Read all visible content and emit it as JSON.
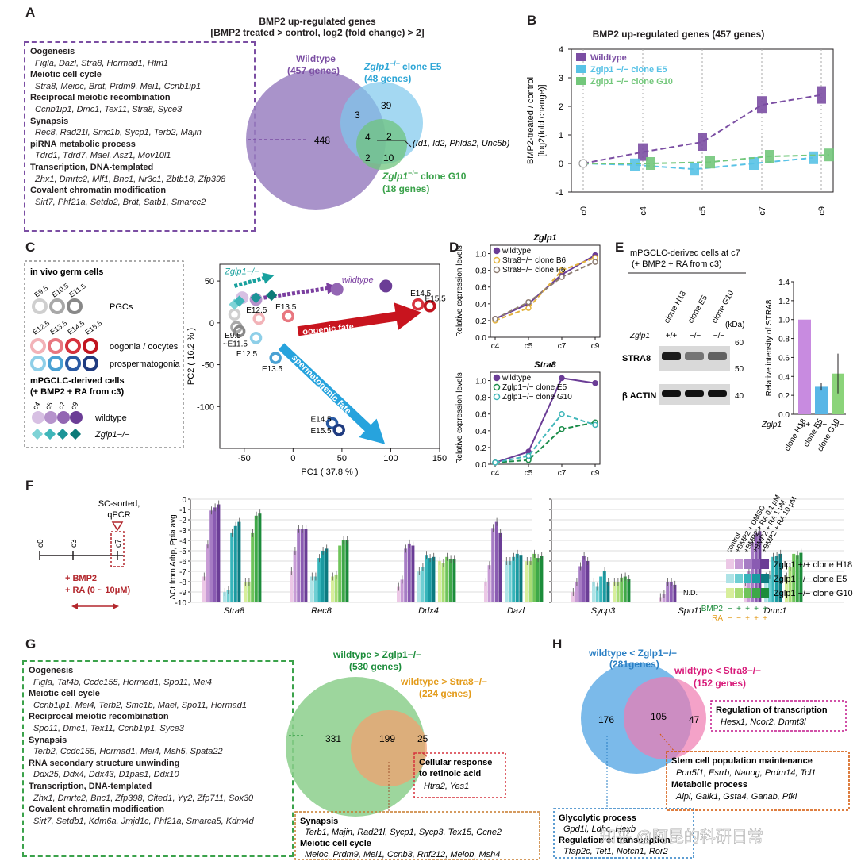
{
  "panelA": {
    "label": "A",
    "title_line1": "BMP2 up-regulated genes",
    "title_line2": "[BMP2 treated > control, log2 (fold change) > 2]",
    "go_terms": [
      {
        "category": "Oogenesis",
        "genes": "Figla, Dazl, Stra8, Hormad1, Hfm1"
      },
      {
        "category": "Meiotic cell cycle",
        "genes": "Stra8, Meioc, Brdt, Prdm9, Mei1, Ccnb1ip1"
      },
      {
        "category": "Reciprocal meiotic recombination",
        "genes": "Ccnb1ip1, Dmc1, Tex11, Stra8, Syce3"
      },
      {
        "category": "Synapsis",
        "genes": "Rec8, Rad21l, Smc1b, Sycp1, Terb2, Majin"
      },
      {
        "category": "piRNA metabolic process",
        "genes": "Tdrd1, Tdrd7, Mael, Asz1, Mov10l1"
      },
      {
        "category": "Transcription, DNA-templated",
        "genes": "Zhx1, Dmrtc2, Mlf1, Bnc1, Nr3c1, Zbtb18, Zfp398"
      },
      {
        "category": "Covalent chromatin modification",
        "genes": "Sirt7, Phf21a, Setdb2, Brdt, Satb1, Smarcc2"
      }
    ],
    "venn": {
      "wt_label": "Wildtype",
      "wt_count": "(457 genes)",
      "e5_label": "Zglp1",
      "e5_suffix": "clone E5",
      "e5_count": "(48 genes)",
      "g10_label": "Zglp1",
      "g10_suffix": "clone G10",
      "g10_count": "(18 genes)",
      "ko_sup": "−/−",
      "n_wt_only": "448",
      "n_wt_e5": "3",
      "n_e5_only": "39",
      "n_all": "4",
      "n_e5_g10": "2",
      "n_wt_g10": "2",
      "n_g10_only": "10",
      "note": "(Id1, Id2, Phlda2, Unc5b)"
    }
  },
  "panelB": {
    "label": "B",
    "title": "BMP2 up-regulated genes (457 genes)",
    "ylabel1": "BMP2-treated / control",
    "ylabel2": "[log2(fold change)]",
    "legend": [
      {
        "name": "Wildtype",
        "color": "#7b4ea3"
      },
      {
        "name": "Zglp1 −/− clone E5",
        "color": "#58c2e6"
      },
      {
        "name": "Zglp1 −/− clone G10",
        "color": "#73c77b"
      }
    ]
  },
  "panelC": {
    "label": "C",
    "legend_title1": "in vivo germ cells",
    "stages_pgc": [
      "E9.5",
      "E10.5",
      "E11.5"
    ],
    "label_pgc": "PGCs",
    "stages_oo": [
      "E12.5",
      "E13.5",
      "E14.5",
      "E15.5"
    ],
    "label_oo": "oogonia / oocytes",
    "label_pro": "prospermatogonia",
    "legend_title2": "mPGCLC-derived cells",
    "legend_title3": "(+ BMP2 + RA from c3)",
    "days": [
      "c4",
      "c5",
      "c7",
      "c9"
    ],
    "label_wt": "wildtype",
    "label_ko": "Zglp1−/−",
    "xlabel": "PC1 ( 37.8 % )",
    "ylabel": "PC2 ( 16.2 % )",
    "arrow_oogenic": "oogenic fate",
    "arrow_sperm": "spermatogenic fate",
    "arrow_wt": "wildtype",
    "arrow_ko": "Zglp1−/−"
  },
  "panelD": {
    "label": "D",
    "top_title": "Zglp1",
    "top_legend": [
      "wildtype",
      "Stra8−/− clone B6",
      "Stra8−/− clone F6"
    ],
    "bottom_title": "Stra8",
    "bottom_legend": [
      "wildtype",
      "Zglp1−/− clone E5",
      "Zglp1−/− clone G10"
    ],
    "ylabel": "Relative expression levels"
  },
  "panelE": {
    "label": "E",
    "title1": "mPGCLC-derived cells at c7",
    "title2": "(+ BMP2 + RA from c3)",
    "clones": [
      "clone H18",
      "clone E5",
      "clone G10"
    ],
    "genotype_label": "Zglp1",
    "genotypes": [
      "+/+",
      "−/−",
      "−/−"
    ],
    "kda": "(kDa)",
    "band1": "STRA8",
    "band2": "β ACTIN",
    "mw": [
      "60",
      "50",
      "40"
    ],
    "ylabel": "Relative intensity of STRA8"
  },
  "panelF": {
    "label": "F",
    "sorted_label1": "SC-sorted,",
    "sorted_label2": "qPCR",
    "timeline": [
      "c0",
      "c3",
      "c7"
    ],
    "treatment1": "+ BMP2",
    "treatment2": "+ RA (0 ~ 10μM)",
    "ylabel": "ΔCt from Arbp, Ppia avg",
    "genes": [
      "Stra8",
      "Rec8",
      "Ddx4",
      "Dazl",
      "Sycp3",
      "Spo11",
      "Dmc1"
    ],
    "nd": "N.D.",
    "conditions": [
      "control",
      "+BMP2 + DMSO",
      "+BMP2 + RA 0.1 μM",
      "+BMP2 + RA 1 μM",
      "+BMP2 + RA 10 μM"
    ],
    "groups": [
      "Zglp1 +/+ clone H18",
      "Zglp1 −/− clone E5",
      "Zglp1 −/− clone G10"
    ],
    "bmp2_label": "BMP2",
    "ra_label": "RA",
    "bmp2_signs": [
      "−",
      "+",
      "+",
      "+",
      "+"
    ],
    "ra_signs": [
      "−",
      "−",
      "+",
      "+",
      "+"
    ]
  },
  "panelG": {
    "label": "G",
    "go_terms": [
      {
        "category": "Oogenesis",
        "genes": "Figla, Taf4b, Ccdc155, Hormad1, Spo11, Mei4"
      },
      {
        "category": "Meiotic cell cycle",
        "genes": "Ccnb1ip1, Mei4, Terb2, Smc1b, Mael, Spo11, Hormad1"
      },
      {
        "category": "Reciprocal meiotic recombination",
        "genes": "Spo11, Dmc1, Tex11, Ccnb1ip1, Syce3"
      },
      {
        "category": "Synapsis",
        "genes": "Terb2, Ccdc155, Hormad1, Mei4, Msh5, Spata22"
      },
      {
        "category": "RNA secondary structure unwinding",
        "genes": "Ddx25, Ddx4, Ddx43, D1pas1, Ddx10"
      },
      {
        "category": "Transcription, DNA-templated",
        "genes": "Zhx1, Dmrtc2, Bnc1, Zfp398, Cited1, Yy2, Zfp711, Sox30"
      },
      {
        "category": "Covalent chromatin modification",
        "genes": "Sirt7, Setdb1, Kdm6a, Jmjd1c, Phf21a, Smarca5, Kdm4d"
      }
    ],
    "venn_wt": "wildtype > Zglp1−/−",
    "venn_wt_count": "(530 genes)",
    "venn_s8": "wildtype > Stra8−/−",
    "venn_s8_count": "(224 genes)",
    "n_left": "331",
    "n_mid": "199",
    "n_right": "25",
    "box_ra_title1": "Cellular response",
    "box_ra_title2": "to retinoic acid",
    "box_ra_genes": "Htra2, Yes1",
    "box_syn_cat1": "Synapsis",
    "box_syn_genes1": "Terb1, Majin, Rad21l, Sycp1, Sycp3, Tex15, Ccne2",
    "box_syn_cat2": "Meiotic cell cycle",
    "box_syn_genes2": "Meioc, Prdm9, Mei1, Ccnb3, Rnf212, Meiob, Msh4"
  },
  "panelH": {
    "label": "H",
    "venn_left": "wildtype < Zglp1−/−",
    "venn_left_count": "(281genes)",
    "venn_right": "wildtype < Stra8−/−",
    "venn_right_count": "(152 genes)",
    "n_left": "176",
    "n_mid": "105",
    "n_right": "47",
    "box_reg_title": "Regulation of transcription",
    "box_reg_genes": "Hesx1, Ncor2, Dnmt3l",
    "box_stem_cat1": "Stem cell population maintenance",
    "box_stem_genes1": "Pou5f1, Esrrb, Nanog, Prdm14, Tcl1",
    "box_stem_cat2": "Metabolic process",
    "box_stem_genes2": "Alpl, Galk1, Gsta4, Ganab, Pfkl",
    "box_gly_cat1": "Glycolytic process",
    "box_gly_genes1": "Gpd1l, Ldhc, Hexb",
    "box_gly_cat2": "Regulation of transcription",
    "box_gly_genes2": "Tfap2c, Tet1, Notch1, Ror2",
    "watermark": "知乎 @阿昆的科研日常"
  },
  "chart_data": [
    {
      "type": "line",
      "panel": "B",
      "title": "BMP2 up-regulated genes (457 genes)",
      "categories": [
        "c0",
        "c4",
        "c5",
        "c7",
        "c9"
      ],
      "ylim": [
        -1,
        4
      ],
      "series": [
        {
          "name": "Wildtype",
          "values": [
            0,
            0.4,
            0.75,
            2.05,
            2.4
          ]
        },
        {
          "name": "Zglp1 −/− clone E5",
          "values": [
            0,
            -0.05,
            -0.2,
            0.0,
            0.2
          ]
        },
        {
          "name": "Zglp1 −/− clone G10",
          "values": [
            0,
            0.0,
            0.05,
            0.25,
            0.3
          ]
        }
      ]
    },
    {
      "type": "scatter",
      "panel": "C",
      "xlabel": "PC1 ( 37.8 % )",
      "ylabel": "PC2 ( 16.2 % )",
      "xlim": [
        -75,
        150
      ],
      "ylim": [
        -150,
        70
      ],
      "series": [
        {
          "name": "PGCs",
          "points": [
            {
              "label": "E9.5",
              "x": -60,
              "y": 10
            },
            {
              "label": "E10.5",
              "x": -58,
              "y": -5
            },
            {
              "label": "E11.5",
              "x": -55,
              "y": -10
            }
          ]
        },
        {
          "name": "oogonia / oocytes",
          "points": [
            {
              "label": "E12.5",
              "x": -35,
              "y": 5
            },
            {
              "label": "E13.5",
              "x": -5,
              "y": 8
            },
            {
              "label": "E14.5",
              "x": 128,
              "y": 22
            },
            {
              "label": "E15.5",
              "x": 140,
              "y": 20
            }
          ]
        },
        {
          "name": "prospermatogonia",
          "points": [
            {
              "label": "E12.5",
              "x": -38,
              "y": -18
            },
            {
              "label": "E13.5",
              "x": -18,
              "y": -42
            },
            {
              "label": "E14.5",
              "x": 40,
              "y": -120
            },
            {
              "label": "E15.5",
              "x": 47,
              "y": -128
            }
          ]
        },
        {
          "name": "wildtype",
          "points": [
            {
              "label": "c4",
              "x": -52,
              "y": 30
            },
            {
              "label": "c5",
              "x": -38,
              "y": 28
            },
            {
              "label": "c7",
              "x": 45,
              "y": 40
            },
            {
              "label": "c9",
              "x": 95,
              "y": 44
            }
          ]
        },
        {
          "name": "Zglp1−/−",
          "points": [
            {
              "label": "c4",
              "x": -60,
              "y": 22
            },
            {
              "label": "c5",
              "x": -55,
              "y": 26
            },
            {
              "label": "c7",
              "x": -38,
              "y": 30
            },
            {
              "label": "c9",
              "x": -22,
              "y": 33
            }
          ]
        }
      ]
    },
    {
      "type": "line",
      "panel": "D",
      "title": "Zglp1",
      "categories": [
        "c4",
        "c5",
        "c7",
        "c9"
      ],
      "ylim": [
        0,
        1.1
      ],
      "series": [
        {
          "name": "wildtype",
          "values": [
            0.22,
            0.4,
            0.75,
            0.98
          ]
        },
        {
          "name": "Stra8−/− clone B6",
          "values": [
            0.2,
            0.35,
            0.8,
            0.95
          ]
        },
        {
          "name": "Stra8−/− clone F6",
          "values": [
            0.22,
            0.42,
            0.72,
            0.9
          ]
        }
      ]
    },
    {
      "type": "line",
      "panel": "D",
      "title": "Stra8",
      "categories": [
        "c4",
        "c5",
        "c7",
        "c9"
      ],
      "ylim": [
        0,
        1.1
      ],
      "series": [
        {
          "name": "wildtype",
          "values": [
            0.02,
            0.15,
            1.03,
            0.97
          ]
        },
        {
          "name": "Zglp1−/− clone E5",
          "values": [
            0.02,
            0.05,
            0.42,
            0.5
          ]
        },
        {
          "name": "Zglp1−/− clone G10",
          "values": [
            0.02,
            0.1,
            0.6,
            0.47
          ]
        }
      ]
    },
    {
      "type": "bar",
      "panel": "E",
      "ylabel": "Relative intensity of STRA8",
      "categories": [
        "clone H18",
        "clone E5",
        "clone G10"
      ],
      "values": [
        1.0,
        0.29,
        0.43
      ],
      "errors": [
        0.0,
        0.04,
        0.21
      ],
      "ylim": [
        0,
        1.4
      ]
    },
    {
      "type": "bar",
      "panel": "F",
      "ylabel": "ΔCt from Arbp, Ppia avg",
      "ylim": [
        -10,
        0
      ],
      "categories": [
        "Stra8",
        "Rec8",
        "Ddx4",
        "Dazl",
        "Sycp3",
        "Spo11",
        "Dmc1"
      ],
      "series": [
        {
          "name": "Zglp1 +/+ clone H18",
          "values": [
            [
              -7.5,
              -4.4,
              -1.1,
              -0.8,
              -0.5
            ],
            [
              -7.0,
              -5.0,
              -2.9,
              -2.9,
              -2.9
            ],
            [
              -8.5,
              -7.8,
              -4.8,
              -4.3,
              -4.5
            ],
            [
              -8.0,
              -6.4,
              -2.8,
              -2.2,
              -3.3
            ],
            [
              -9.0,
              -8.0,
              -6.5,
              -5.5,
              -6.0
            ],
            [
              -9.5,
              -9.2,
              -8.0,
              -8.0,
              -8.3
            ],
            [
              -8.0,
              -7.0,
              -4.2,
              -3.3,
              -3.1
            ]
          ]
        },
        {
          "name": "Zglp1 −/− clone E5",
          "values": [
            [
              -9.0,
              -8.8,
              -3.3,
              -2.6,
              -2.2
            ],
            [
              -7.5,
              -7.5,
              -5.7,
              -5.0,
              -4.8
            ],
            [
              -7.0,
              -6.6,
              -5.4,
              -5.7,
              -5.6
            ],
            [
              -6.0,
              -6.0,
              -5.6,
              -5.3,
              -5.4
            ],
            [
              -8.0,
              -8.5,
              -7.5,
              -7.0,
              -8.0
            ],
            [
              -9.7,
              -9.7,
              -9.7,
              -9.7,
              -9.7
            ],
            [
              -7.5,
              -7.3,
              -5.6,
              -5.5,
              -5.3
            ]
          ]
        },
        {
          "name": "Zglp1 −/− clone G10",
          "values": [
            [
              -8.0,
              -8.0,
              -3.3,
              -1.6,
              -1.4
            ],
            [
              -7.5,
              -7.3,
              -4.5,
              -4.0,
              -4.0
            ],
            [
              -6.0,
              -6.2,
              -5.6,
              -5.8,
              -5.8
            ],
            [
              -6.0,
              -6.0,
              -5.3,
              -5.7,
              -5.5
            ],
            [
              -8.0,
              -8.0,
              -7.6,
              -7.5,
              -7.7
            ],
            [
              -9.7,
              -9.7,
              -9.7,
              -9.7,
              -9.7
            ],
            [
              -7.5,
              -6.6,
              -5.3,
              -5.4,
              -5.2
            ]
          ]
        }
      ]
    }
  ]
}
